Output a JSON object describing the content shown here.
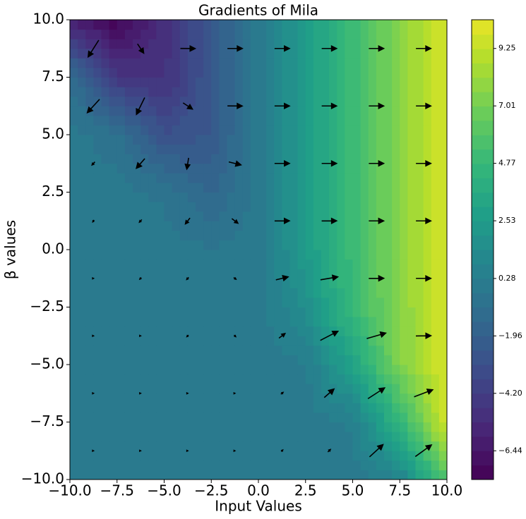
{
  "chart_data": {
    "type": "contour-quiver",
    "title": "Gradients of Mila",
    "x_label": "Input Values",
    "y_label": "β values",
    "x": [
      -10,
      -7.5,
      -5,
      -2.5,
      0,
      2.5,
      5,
      7.5,
      10
    ],
    "y": [
      -10,
      -7.5,
      -5,
      -2.5,
      0,
      2.5,
      5,
      7.5,
      10
    ],
    "z": [
      [
        0,
        0,
        0,
        0,
        0,
        0,
        0.03,
        0.59,
        6.0
      ],
      [
        0,
        0,
        0,
        0,
        0,
        0.02,
        0.39,
        4.5,
        9.89
      ],
      [
        0,
        0,
        0,
        0,
        0,
        0.2,
        3.0,
        7.42,
        10.0
      ],
      [
        0,
        0,
        0,
        -0.02,
        0,
        1.5,
        4.95,
        7.5,
        10.0
      ],
      [
        0,
        0,
        -0.03,
        -0.2,
        0,
        2.47,
        5.0,
        7.5,
        10.0
      ],
      [
        -0.01,
        -0.05,
        -0.39,
        -1.5,
        0,
        2.5,
        5.0,
        7.5,
        10.0
      ],
      [
        -0.07,
        -0.59,
        -3.0,
        -2.47,
        0,
        2.5,
        5.0,
        7.5,
        10.0
      ],
      [
        -0.79,
        -4.5,
        -4.95,
        -2.5,
        0,
        2.5,
        5.0,
        7.5,
        10.0
      ],
      [
        -6.0,
        -7.42,
        -5.0,
        -2.5,
        0,
        2.5,
        5.0,
        7.5,
        10.0
      ]
    ],
    "xlim": [
      -10,
      10
    ],
    "ylim": [
      -10,
      10
    ],
    "xticks": [
      {
        "value": -10,
        "label": "−10.0"
      },
      {
        "value": -7.5,
        "label": "−7.5"
      },
      {
        "value": -5,
        "label": "−5.0"
      },
      {
        "value": -2.5,
        "label": "−2.5"
      },
      {
        "value": 0,
        "label": "0.0"
      },
      2.5,
      {
        "value": 5,
        "label": "5.0"
      },
      7.5,
      {
        "value": 10,
        "label": "10.0"
      }
    ],
    "yticks": [
      {
        "value": -10,
        "label": "−10.0"
      },
      {
        "value": -7.5,
        "label": "−7.5"
      },
      {
        "value": -5,
        "label": "−5.0"
      },
      {
        "value": -2.5,
        "label": "−2.5"
      },
      {
        "value": 0,
        "label": "0.0"
      },
      2.5,
      {
        "value": 5,
        "label": "5.0"
      },
      7.5,
      {
        "value": 10,
        "label": "10.0"
      }
    ],
    "colormap": "viridis",
    "colorbar": {
      "lim": [
        -7.56,
        10.37
      ],
      "step": 0.56,
      "ticks": [
        {
          "value": -6.44,
          "label": "−6.44"
        },
        {
          "value": -4.2,
          "label": "−4.20"
        },
        {
          "value": -1.96,
          "label": "−1.96"
        },
        0.28,
        2.53,
        4.77,
        7.01,
        9.25
      ]
    }
  }
}
